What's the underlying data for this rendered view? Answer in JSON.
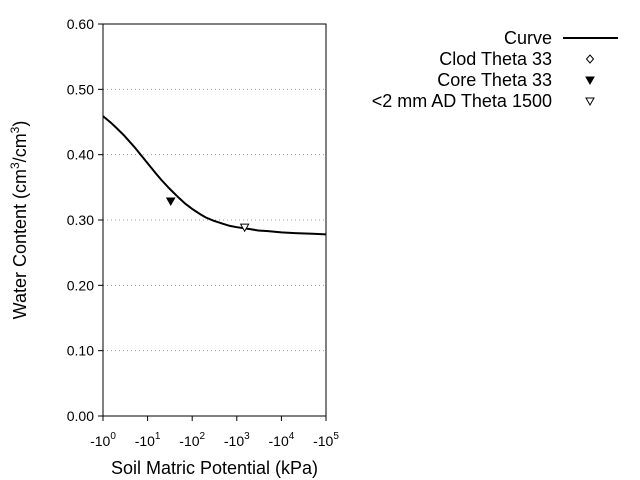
{
  "chart_data": {
    "type": "line",
    "xlabel": "Soil Matric Potential (kPa)",
    "ylabel": "Water Content (cm³/cm³)",
    "ylabel_parts": [
      "Water Content (cm",
      "3",
      "/cm",
      "3",
      ")"
    ],
    "x_scale": "log",
    "x_axis_note": "x = magnitude of matric potential in kPa; axis prints negative powers of ten",
    "xlim": [
      1,
      100000
    ],
    "ylim": [
      0,
      0.6
    ],
    "x_ticks": [
      {
        "value": 1,
        "prefix": "-10",
        "exp": "0"
      },
      {
        "value": 10,
        "prefix": "-10",
        "exp": "1"
      },
      {
        "value": 100,
        "prefix": "-10",
        "exp": "2"
      },
      {
        "value": 1000,
        "prefix": "-10",
        "exp": "3"
      },
      {
        "value": 10000,
        "prefix": "-10",
        "exp": "4"
      },
      {
        "value": 100000,
        "prefix": "-10",
        "exp": "5"
      }
    ],
    "y_ticks": [
      "0.00",
      "0.10",
      "0.20",
      "0.30",
      "0.40",
      "0.50",
      "0.60"
    ],
    "y_grid": true,
    "legend_position": "top-right",
    "series": [
      {
        "name": "Curve",
        "kind": "line",
        "color": "#000000",
        "x": [
          1,
          1.5,
          2,
          3,
          5,
          7,
          10,
          15,
          20,
          30,
          50,
          70,
          100,
          150,
          200,
          300,
          500,
          700,
          1000,
          2000,
          3000,
          5000,
          10000,
          20000,
          50000,
          100000
        ],
        "y": [
          0.459,
          0.449,
          0.441,
          0.429,
          0.412,
          0.4,
          0.387,
          0.372,
          0.362,
          0.349,
          0.334,
          0.325,
          0.317,
          0.309,
          0.304,
          0.299,
          0.294,
          0.291,
          0.289,
          0.286,
          0.284,
          0.283,
          0.281,
          0.28,
          0.279,
          0.278
        ]
      },
      {
        "name": "Clod Theta 33",
        "kind": "marker",
        "marker": "diamond-open",
        "x": [],
        "y": []
      },
      {
        "name": "Core Theta 33",
        "kind": "marker",
        "marker": "triangle-down-filled",
        "x": [
          33
        ],
        "y": [
          0.329
        ]
      },
      {
        "name": "<2 mm AD Theta 1500",
        "kind": "marker",
        "marker": "triangle-down-open",
        "x": [
          1500
        ],
        "y": [
          0.289
        ]
      }
    ]
  }
}
